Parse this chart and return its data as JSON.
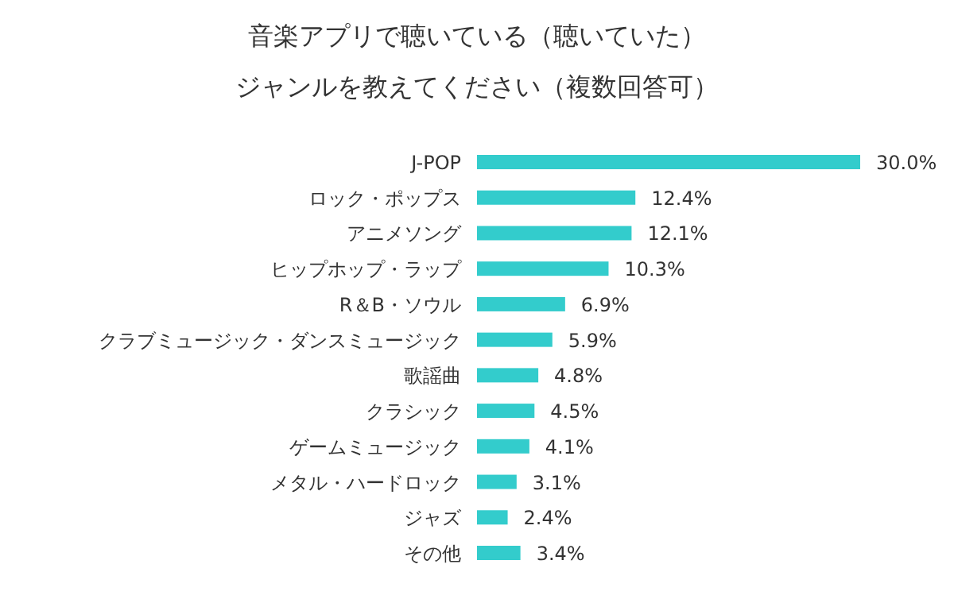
{
  "chart_data": {
    "type": "bar",
    "orientation": "horizontal",
    "title": "音楽アプリで聴いている（聴いていた）",
    "subtitle": "ジャンルを教えてください（複数回答可）",
    "categories": [
      "J-POP",
      "ロック・ポップス",
      "アニメソング",
      "ヒップホップ・ラップ",
      "R＆B・ソウル",
      "クラブミュージック・ダンスミュージック",
      "歌謡曲",
      "クラシック",
      "ゲームミュージック",
      "メタル・ハードロック",
      "ジャズ",
      "その他"
    ],
    "values": [
      30.0,
      12.4,
      12.1,
      10.3,
      6.9,
      5.9,
      4.8,
      4.5,
      4.1,
      3.1,
      2.4,
      3.4
    ],
    "value_labels": [
      "30.0%",
      "12.4%",
      "12.1%",
      "10.3%",
      "6.9%",
      "5.9%",
      "4.8%",
      "4.5%",
      "4.1%",
      "3.1%",
      "2.4%",
      "3.4%"
    ],
    "color": "#33cccc"
  }
}
